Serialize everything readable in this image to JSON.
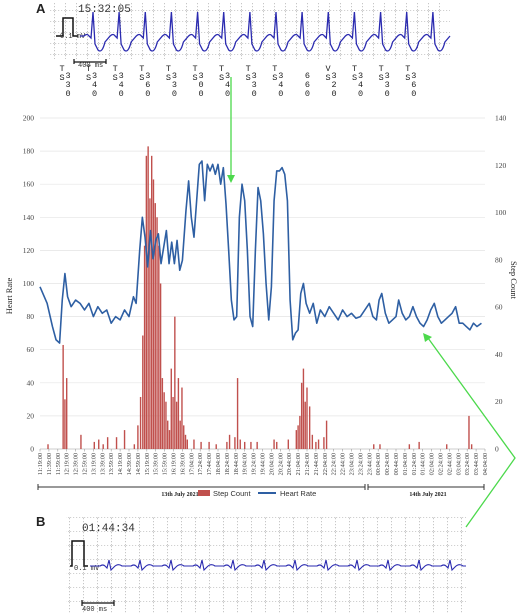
{
  "panel_a": {
    "label": "A",
    "ecg_time": "15:32:05",
    "ecg_scale_label": "0.1 mV",
    "ecg_ms_label": "400 ms",
    "beats": [
      {
        "cls": "T",
        "ann": "S",
        "rr": "330"
      },
      {
        "cls": "T",
        "ann": "S",
        "rr": "340"
      },
      {
        "cls": "T",
        "ann": "S",
        "rr": "340"
      },
      {
        "cls": "T",
        "ann": "S",
        "rr": "360"
      },
      {
        "cls": "T",
        "ann": "S",
        "rr": "330"
      },
      {
        "cls": "T",
        "ann": "S",
        "rr": "300"
      },
      {
        "cls": "T",
        "ann": "S",
        "rr": "340"
      },
      {
        "cls": "T",
        "ann": "S",
        "rr": "330"
      },
      {
        "cls": "T",
        "ann": "S",
        "rr": "340"
      },
      {
        "cls": "",
        "ann": "",
        "rr": "660"
      },
      {
        "cls": "V",
        "ann": "S",
        "rr": "320"
      },
      {
        "cls": "T",
        "ann": "S",
        "rr": "340"
      },
      {
        "cls": "T",
        "ann": "S",
        "rr": "330"
      },
      {
        "cls": "T",
        "ann": "S",
        "rr": "360"
      }
    ]
  },
  "panel_b": {
    "label": "B",
    "ecg_time": "01:44:34",
    "ecg_scale_label": "0.1 mV",
    "ecg_ms_label": "400 ms"
  },
  "colors": {
    "heart_rate": "#2e5fa3",
    "step_count": "#c0504d",
    "ecg_trace": "#2b2bb0",
    "arrow": "#4cd94c"
  },
  "chart_data": {
    "type": "bar+line",
    "ylabel_left": "Heart Rate",
    "ylabel_right": "Step Count",
    "ylim_left": [
      0,
      200
    ],
    "yticks_left": [
      "0",
      "20",
      "40",
      "60",
      "80",
      "100",
      "120",
      "140",
      "160",
      "180",
      "200"
    ],
    "ylim_right": [
      0,
      140
    ],
    "yticks_right": [
      "0",
      "20",
      "40",
      "60",
      "80",
      "100",
      "120",
      "140"
    ],
    "legend": [
      "Step Count",
      "Heart Rate"
    ],
    "legend_position": "bottom",
    "date_labels": [
      "13th July 2021",
      "14th July 2021"
    ],
    "x_labels": [
      "11:19:00",
      "11:39:00",
      "11:59:00",
      "12:19:00",
      "12:39:00",
      "12:59:00",
      "13:19:00",
      "13:39:00",
      "13:59:00",
      "14:19:00",
      "14:39:00",
      "14:59:00",
      "15:19:00",
      "15:39:00",
      "15:59:00",
      "16:19:00",
      "16:39:00",
      "17:04:00",
      "17:24:00",
      "17:44:00",
      "18:04:00",
      "18:24:00",
      "18:44:00",
      "19:04:00",
      "19:24:00",
      "19:44:00",
      "20:04:00",
      "20:24:00",
      "20:44:00",
      "21:04:00",
      "21:24:00",
      "21:44:00",
      "22:04:00",
      "22:24:00",
      "22:44:00",
      "23:04:00",
      "23:24:00",
      "23:44:00",
      "00:04:00",
      "00:24:00",
      "00:44:00",
      "01:04:00",
      "01:24:00",
      "01:44:00",
      "02:04:00",
      "02:24:00",
      "02:44:00",
      "03:04:00",
      "03:24:00",
      "03:44:00",
      "04:04:00"
    ],
    "heart_rate": [
      {
        "t": 0.0,
        "v": 98
      },
      {
        "t": 0.8,
        "v": 88
      },
      {
        "t": 1.4,
        "v": 74
      },
      {
        "t": 1.8,
        "v": 66
      },
      {
        "t": 2.2,
        "v": 64
      },
      {
        "t": 2.5,
        "v": 90
      },
      {
        "t": 2.8,
        "v": 106
      },
      {
        "t": 3.1,
        "v": 92
      },
      {
        "t": 3.5,
        "v": 86
      },
      {
        "t": 4.0,
        "v": 90
      },
      {
        "t": 4.5,
        "v": 88
      },
      {
        "t": 5.0,
        "v": 84
      },
      {
        "t": 5.5,
        "v": 88
      },
      {
        "t": 6.0,
        "v": 80
      },
      {
        "t": 6.5,
        "v": 86
      },
      {
        "t": 7.0,
        "v": 82
      },
      {
        "t": 7.5,
        "v": 84
      },
      {
        "t": 8.0,
        "v": 76
      },
      {
        "t": 8.5,
        "v": 80
      },
      {
        "t": 9.0,
        "v": 78
      },
      {
        "t": 9.5,
        "v": 84
      },
      {
        "t": 10.0,
        "v": 80
      },
      {
        "t": 10.5,
        "v": 92
      },
      {
        "t": 10.8,
        "v": 88
      },
      {
        "t": 11.2,
        "v": 120
      },
      {
        "t": 11.5,
        "v": 140
      },
      {
        "t": 11.8,
        "v": 128
      },
      {
        "t": 12.1,
        "v": 110
      },
      {
        "t": 12.4,
        "v": 132
      },
      {
        "t": 12.7,
        "v": 115
      },
      {
        "t": 13.0,
        "v": 126
      },
      {
        "t": 13.3,
        "v": 130
      },
      {
        "t": 13.6,
        "v": 112
      },
      {
        "t": 13.9,
        "v": 122
      },
      {
        "t": 14.2,
        "v": 132
      },
      {
        "t": 14.5,
        "v": 112
      },
      {
        "t": 14.8,
        "v": 125
      },
      {
        "t": 15.1,
        "v": 112
      },
      {
        "t": 15.4,
        "v": 126
      },
      {
        "t": 15.7,
        "v": 108
      },
      {
        "t": 16.0,
        "v": 114
      },
      {
        "t": 16.4,
        "v": 144
      },
      {
        "t": 16.7,
        "v": 162
      },
      {
        "t": 17.0,
        "v": 140
      },
      {
        "t": 17.3,
        "v": 128
      },
      {
        "t": 17.6,
        "v": 150
      },
      {
        "t": 17.9,
        "v": 172
      },
      {
        "t": 18.2,
        "v": 174
      },
      {
        "t": 18.5,
        "v": 150
      },
      {
        "t": 18.8,
        "v": 172
      },
      {
        "t": 19.1,
        "v": 168
      },
      {
        "t": 19.4,
        "v": 172
      },
      {
        "t": 19.7,
        "v": 166
      },
      {
        "t": 20.0,
        "v": 172
      },
      {
        "t": 20.3,
        "v": 160
      },
      {
        "t": 20.6,
        "v": 170
      },
      {
        "t": 20.9,
        "v": 148
      },
      {
        "t": 21.2,
        "v": 120
      },
      {
        "t": 21.5,
        "v": 90
      },
      {
        "t": 21.8,
        "v": 78
      },
      {
        "t": 22.1,
        "v": 80
      },
      {
        "t": 22.4,
        "v": 140
      },
      {
        "t": 22.7,
        "v": 160
      },
      {
        "t": 23.0,
        "v": 150
      },
      {
        "t": 23.3,
        "v": 120
      },
      {
        "t": 23.6,
        "v": 80
      },
      {
        "t": 23.9,
        "v": 74
      },
      {
        "t": 24.2,
        "v": 120
      },
      {
        "t": 24.5,
        "v": 158
      },
      {
        "t": 24.8,
        "v": 150
      },
      {
        "t": 25.1,
        "v": 130
      },
      {
        "t": 25.4,
        "v": 100
      },
      {
        "t": 25.7,
        "v": 78
      },
      {
        "t": 26.0,
        "v": 98
      },
      {
        "t": 26.3,
        "v": 150
      },
      {
        "t": 26.6,
        "v": 168
      },
      {
        "t": 26.9,
        "v": 168
      },
      {
        "t": 27.2,
        "v": 170
      },
      {
        "t": 27.5,
        "v": 166
      },
      {
        "t": 27.8,
        "v": 150
      },
      {
        "t": 28.1,
        "v": 90
      },
      {
        "t": 28.4,
        "v": 66
      },
      {
        "t": 28.7,
        "v": 70
      },
      {
        "t": 29.0,
        "v": 72
      },
      {
        "t": 29.3,
        "v": 94
      },
      {
        "t": 29.6,
        "v": 100
      },
      {
        "t": 29.9,
        "v": 88
      },
      {
        "t": 30.3,
        "v": 82
      },
      {
        "t": 30.7,
        "v": 88
      },
      {
        "t": 31.1,
        "v": 76
      },
      {
        "t": 31.5,
        "v": 84
      },
      {
        "t": 32.0,
        "v": 80
      },
      {
        "t": 32.5,
        "v": 86
      },
      {
        "t": 33.0,
        "v": 82
      },
      {
        "t": 33.5,
        "v": 78
      },
      {
        "t": 34.0,
        "v": 84
      },
      {
        "t": 34.5,
        "v": 80
      },
      {
        "t": 35.0,
        "v": 82
      },
      {
        "t": 35.5,
        "v": 79
      },
      {
        "t": 36.0,
        "v": 80
      },
      {
        "t": 36.5,
        "v": 84
      },
      {
        "t": 37.0,
        "v": 88
      },
      {
        "t": 37.4,
        "v": 80
      },
      {
        "t": 37.8,
        "v": 78
      },
      {
        "t": 38.1,
        "v": 90
      },
      {
        "t": 38.4,
        "v": 94
      },
      {
        "t": 38.8,
        "v": 82
      },
      {
        "t": 39.2,
        "v": 76
      },
      {
        "t": 39.6,
        "v": 78
      },
      {
        "t": 40.0,
        "v": 80
      },
      {
        "t": 40.3,
        "v": 90
      },
      {
        "t": 40.7,
        "v": 82
      },
      {
        "t": 41.1,
        "v": 78
      },
      {
        "t": 41.5,
        "v": 80
      },
      {
        "t": 41.9,
        "v": 86
      },
      {
        "t": 42.3,
        "v": 80
      },
      {
        "t": 42.7,
        "v": 76
      },
      {
        "t": 43.1,
        "v": 74
      },
      {
        "t": 43.5,
        "v": 78
      },
      {
        "t": 43.9,
        "v": 84
      },
      {
        "t": 44.3,
        "v": 88
      },
      {
        "t": 44.7,
        "v": 80
      },
      {
        "t": 45.1,
        "v": 76
      },
      {
        "t": 45.5,
        "v": 78
      },
      {
        "t": 45.9,
        "v": 80
      },
      {
        "t": 46.3,
        "v": 82
      },
      {
        "t": 46.7,
        "v": 86
      },
      {
        "t": 47.1,
        "v": 76
      },
      {
        "t": 47.5,
        "v": 76
      },
      {
        "t": 47.9,
        "v": 74
      },
      {
        "t": 48.3,
        "v": 72
      },
      {
        "t": 48.7,
        "v": 76
      },
      {
        "t": 49.1,
        "v": 74
      },
      {
        "t": 49.6,
        "v": 76
      }
    ],
    "step_count": [
      {
        "t": 0.9,
        "v": 2
      },
      {
        "t": 2.6,
        "v": 44
      },
      {
        "t": 2.8,
        "v": 21
      },
      {
        "t": 3.0,
        "v": 30
      },
      {
        "t": 4.6,
        "v": 6
      },
      {
        "t": 6.1,
        "v": 3
      },
      {
        "t": 6.6,
        "v": 4
      },
      {
        "t": 7.1,
        "v": 2
      },
      {
        "t": 7.6,
        "v": 5
      },
      {
        "t": 8.6,
        "v": 5
      },
      {
        "t": 9.5,
        "v": 8
      },
      {
        "t": 10.6,
        "v": 2
      },
      {
        "t": 11.0,
        "v": 10
      },
      {
        "t": 11.3,
        "v": 22
      },
      {
        "t": 11.55,
        "v": 48
      },
      {
        "t": 11.75,
        "v": 86
      },
      {
        "t": 11.95,
        "v": 124
      },
      {
        "t": 12.15,
        "v": 128
      },
      {
        "t": 12.35,
        "v": 106
      },
      {
        "t": 12.55,
        "v": 124
      },
      {
        "t": 12.75,
        "v": 114
      },
      {
        "t": 12.95,
        "v": 104
      },
      {
        "t": 13.15,
        "v": 98
      },
      {
        "t": 13.35,
        "v": 86
      },
      {
        "t": 13.55,
        "v": 70
      },
      {
        "t": 13.75,
        "v": 30
      },
      {
        "t": 13.95,
        "v": 24
      },
      {
        "t": 14.15,
        "v": 20
      },
      {
        "t": 14.35,
        "v": 12
      },
      {
        "t": 14.55,
        "v": 8
      },
      {
        "t": 14.75,
        "v": 34
      },
      {
        "t": 14.95,
        "v": 22
      },
      {
        "t": 15.15,
        "v": 56
      },
      {
        "t": 15.35,
        "v": 20
      },
      {
        "t": 15.55,
        "v": 30
      },
      {
        "t": 15.75,
        "v": 12
      },
      {
        "t": 15.95,
        "v": 26
      },
      {
        "t": 16.15,
        "v": 10
      },
      {
        "t": 16.35,
        "v": 6
      },
      {
        "t": 16.55,
        "v": 4
      },
      {
        "t": 17.3,
        "v": 4
      },
      {
        "t": 18.1,
        "v": 3
      },
      {
        "t": 19.0,
        "v": 3
      },
      {
        "t": 19.8,
        "v": 2
      },
      {
        "t": 21.0,
        "v": 3
      },
      {
        "t": 21.3,
        "v": 6
      },
      {
        "t": 21.9,
        "v": 5
      },
      {
        "t": 22.2,
        "v": 30
      },
      {
        "t": 22.5,
        "v": 4
      },
      {
        "t": 23.0,
        "v": 3
      },
      {
        "t": 23.7,
        "v": 3
      },
      {
        "t": 24.4,
        "v": 3
      },
      {
        "t": 26.3,
        "v": 4
      },
      {
        "t": 26.6,
        "v": 3
      },
      {
        "t": 27.9,
        "v": 4
      },
      {
        "t": 28.8,
        "v": 8
      },
      {
        "t": 29.0,
        "v": 10
      },
      {
        "t": 29.2,
        "v": 14
      },
      {
        "t": 29.4,
        "v": 28
      },
      {
        "t": 29.6,
        "v": 34
      },
      {
        "t": 29.8,
        "v": 20
      },
      {
        "t": 30.0,
        "v": 26
      },
      {
        "t": 30.3,
        "v": 18
      },
      {
        "t": 30.6,
        "v": 6
      },
      {
        "t": 31.0,
        "v": 3
      },
      {
        "t": 31.3,
        "v": 4
      },
      {
        "t": 31.9,
        "v": 5
      },
      {
        "t": 32.2,
        "v": 12
      },
      {
        "t": 37.5,
        "v": 2
      },
      {
        "t": 38.2,
        "v": 2
      },
      {
        "t": 41.5,
        "v": 2
      },
      {
        "t": 42.6,
        "v": 3
      },
      {
        "t": 45.7,
        "v": 2
      },
      {
        "t": 48.2,
        "v": 14
      },
      {
        "t": 48.5,
        "v": 2
      }
    ]
  }
}
